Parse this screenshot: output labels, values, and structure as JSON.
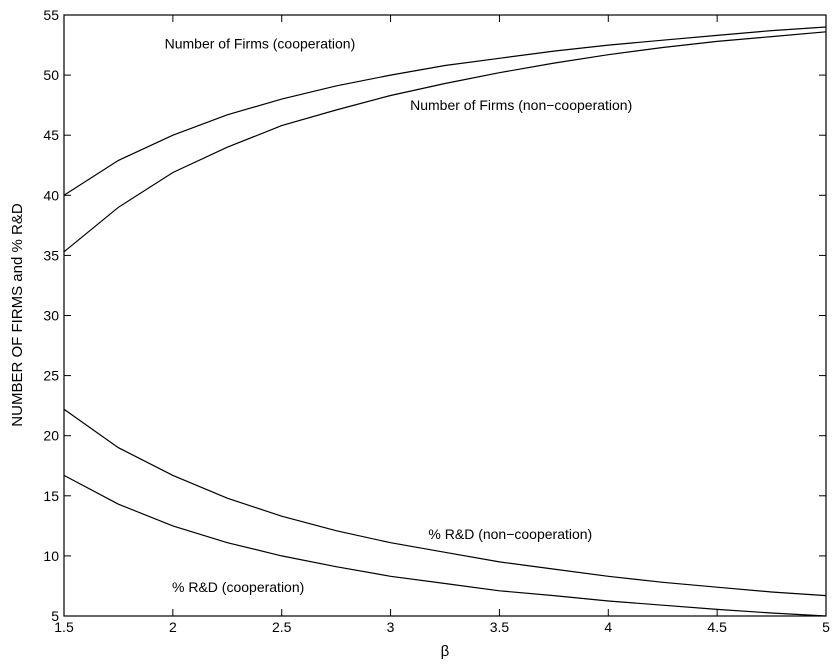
{
  "chart_data": {
    "type": "line",
    "xlabel": "β",
    "ylabel": "NUMBER OF FIRMS and % R&D",
    "xlim": [
      1.5,
      5
    ],
    "ylim": [
      5,
      55
    ],
    "grid": false,
    "xticks": [
      "1.5",
      "2",
      "2.5",
      "3",
      "3.5",
      "4",
      "4.5",
      "5"
    ],
    "yticks": [
      "5",
      "10",
      "15",
      "20",
      "25",
      "30",
      "35",
      "40",
      "45",
      "50",
      "55"
    ],
    "x": [
      1.5,
      1.75,
      2.0,
      2.25,
      2.5,
      2.75,
      3.0,
      3.25,
      3.5,
      3.75,
      4.0,
      4.25,
      4.5,
      4.75,
      5.0
    ],
    "series": [
      {
        "name": "Number of Firms (cooperation)",
        "values": [
          40.0,
          42.9,
          45.0,
          46.7,
          48.0,
          49.1,
          50.0,
          50.8,
          51.4,
          52.0,
          52.5,
          52.9,
          53.3,
          53.7,
          54.0
        ]
      },
      {
        "name": "Number of Firms (non−cooperation)",
        "values": [
          35.3,
          39.0,
          41.9,
          44.0,
          45.8,
          47.1,
          48.3,
          49.3,
          50.2,
          51.0,
          51.7,
          52.3,
          52.8,
          53.2,
          53.6
        ]
      },
      {
        "name": "% R&D (non−cooperation)",
        "values": [
          22.2,
          19.0,
          16.7,
          14.8,
          13.3,
          12.1,
          11.1,
          10.3,
          9.5,
          8.9,
          8.3,
          7.8,
          7.4,
          7.0,
          6.7
        ]
      },
      {
        "name": "% R&D (cooperation)",
        "values": [
          16.7,
          14.3,
          12.5,
          11.1,
          10.0,
          9.1,
          8.3,
          7.7,
          7.1,
          6.7,
          6.25,
          5.9,
          5.55,
          5.25,
          5.0
        ]
      }
    ],
    "annotations": [
      {
        "text": "Number of Firms (cooperation)",
        "x": 2.4,
        "y": 52.2
      },
      {
        "text": "Number of Firms (non−cooperation)",
        "x": 3.6,
        "y": 47.1
      },
      {
        "text": "% R&D (non−cooperation)",
        "x": 3.55,
        "y": 11.4
      },
      {
        "text": "% R&D (cooperation)",
        "x": 2.3,
        "y": 7.0
      }
    ]
  }
}
